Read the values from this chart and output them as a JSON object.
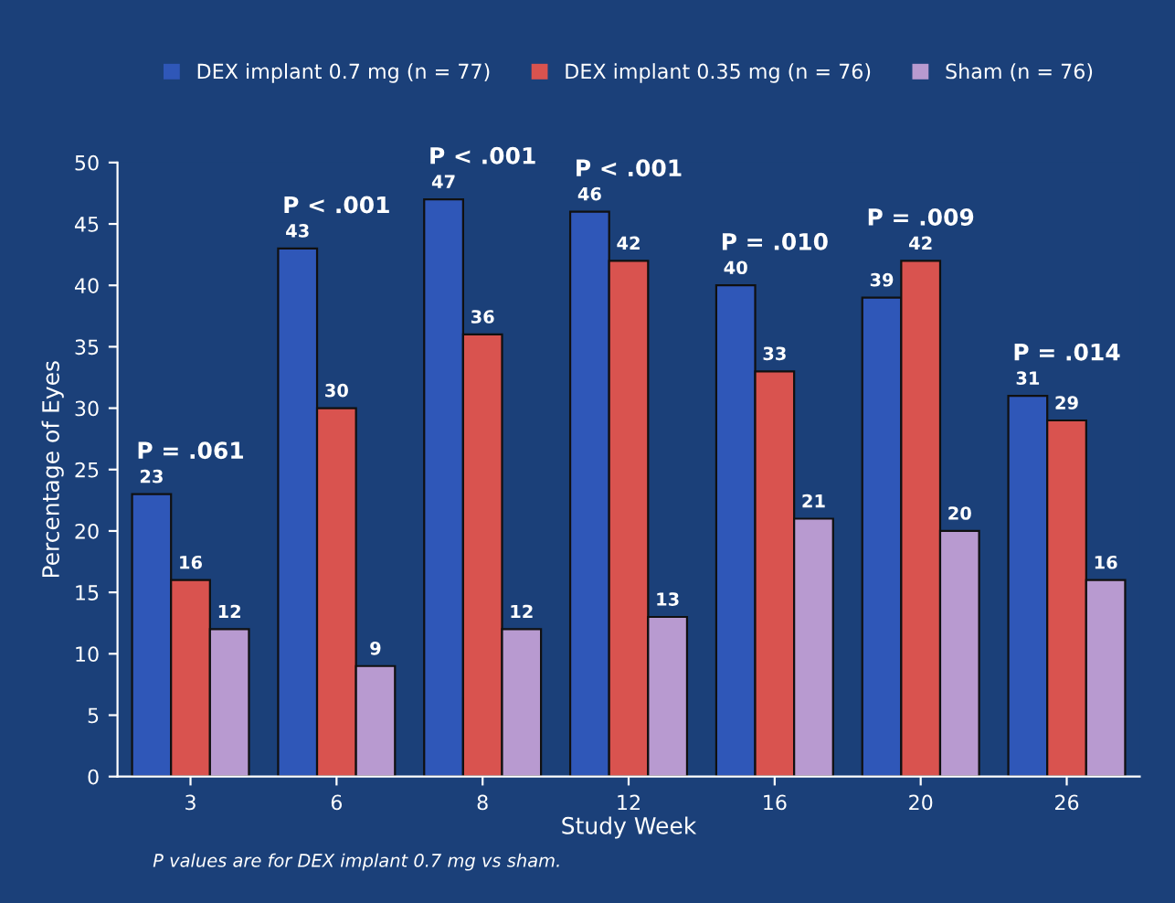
{
  "chart_data": {
    "type": "bar",
    "xlabel": "Study Week",
    "ylabel": "Percentage of Eyes",
    "categories": [
      "3",
      "6",
      "8",
      "12",
      "16",
      "20",
      "26"
    ],
    "series": [
      {
        "name": "DEX implant 0.7 mg (n = 77)",
        "color": "#2f57b8",
        "values": [
          23,
          43,
          47,
          46,
          40,
          39,
          31
        ]
      },
      {
        "name": "DEX implant 0.35 mg (n = 76)",
        "color": "#d9534f",
        "values": [
          16,
          30,
          36,
          42,
          33,
          42,
          29
        ]
      },
      {
        "name": "Sham (n = 76)",
        "color": "#b89ad0",
        "values": [
          12,
          9,
          12,
          13,
          21,
          20,
          16
        ]
      }
    ],
    "ylim": [
      0,
      50
    ],
    "yticks": [
      0,
      5,
      10,
      15,
      20,
      25,
      30,
      35,
      40,
      45,
      50
    ],
    "data_labels": true,
    "grid": false,
    "legend": "top",
    "annotations": [
      "P = .061",
      "P < .001",
      "P < .001",
      "P < .001",
      "P = .010",
      "P = .009",
      "P = .014",
      "P values are for DEX implant 0.7 mg vs sham."
    ]
  }
}
